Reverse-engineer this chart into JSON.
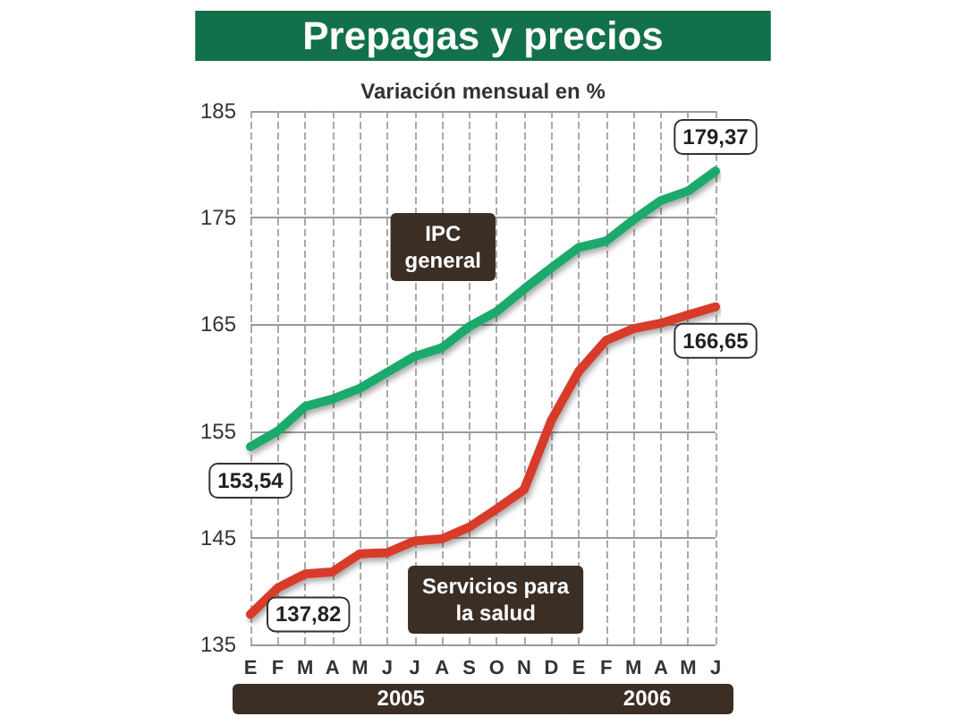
{
  "chart_data": {
    "type": "line",
    "title": "Prepagas y precios",
    "subtitle": "Variación mensual en %",
    "categories": [
      "E",
      "F",
      "M",
      "A",
      "M",
      "J",
      "J",
      "A",
      "S",
      "O",
      "N",
      "D",
      "E",
      "F",
      "M",
      "A",
      "M",
      "J"
    ],
    "series": [
      {
        "name": "IPC general",
        "color": "#1aaa6c",
        "values": [
          153.54,
          155,
          157.3,
          158,
          159,
          160.5,
          162,
          162.8,
          164.8,
          166.2,
          168.3,
          170.3,
          172.2,
          172.8,
          174.8,
          176.6,
          177.5,
          179.37
        ],
        "value_labels": [
          "153,54",
          null,
          null,
          null,
          null,
          null,
          null,
          null,
          null,
          null,
          null,
          null,
          null,
          null,
          null,
          null,
          null,
          "179,37"
        ]
      },
      {
        "name": "Servicios para la salud",
        "color": "#d83a2c",
        "values": [
          137.82,
          140.3,
          141.6,
          141.8,
          143.5,
          143.6,
          144.7,
          144.9,
          146,
          147.7,
          149.5,
          156,
          160.6,
          163.5,
          164.6,
          165.1,
          165.9,
          166.65
        ],
        "value_labels": [
          "137,82",
          null,
          null,
          null,
          null,
          null,
          null,
          null,
          null,
          null,
          null,
          null,
          null,
          null,
          null,
          null,
          null,
          "166,65"
        ]
      }
    ],
    "annotations": [
      "2005",
      "2006"
    ],
    "ylim": [
      135,
      185
    ],
    "yticks": [
      135,
      145,
      155,
      165,
      175,
      185
    ],
    "grid": true,
    "legend": false,
    "marker": "none",
    "line_style": "solid"
  }
}
